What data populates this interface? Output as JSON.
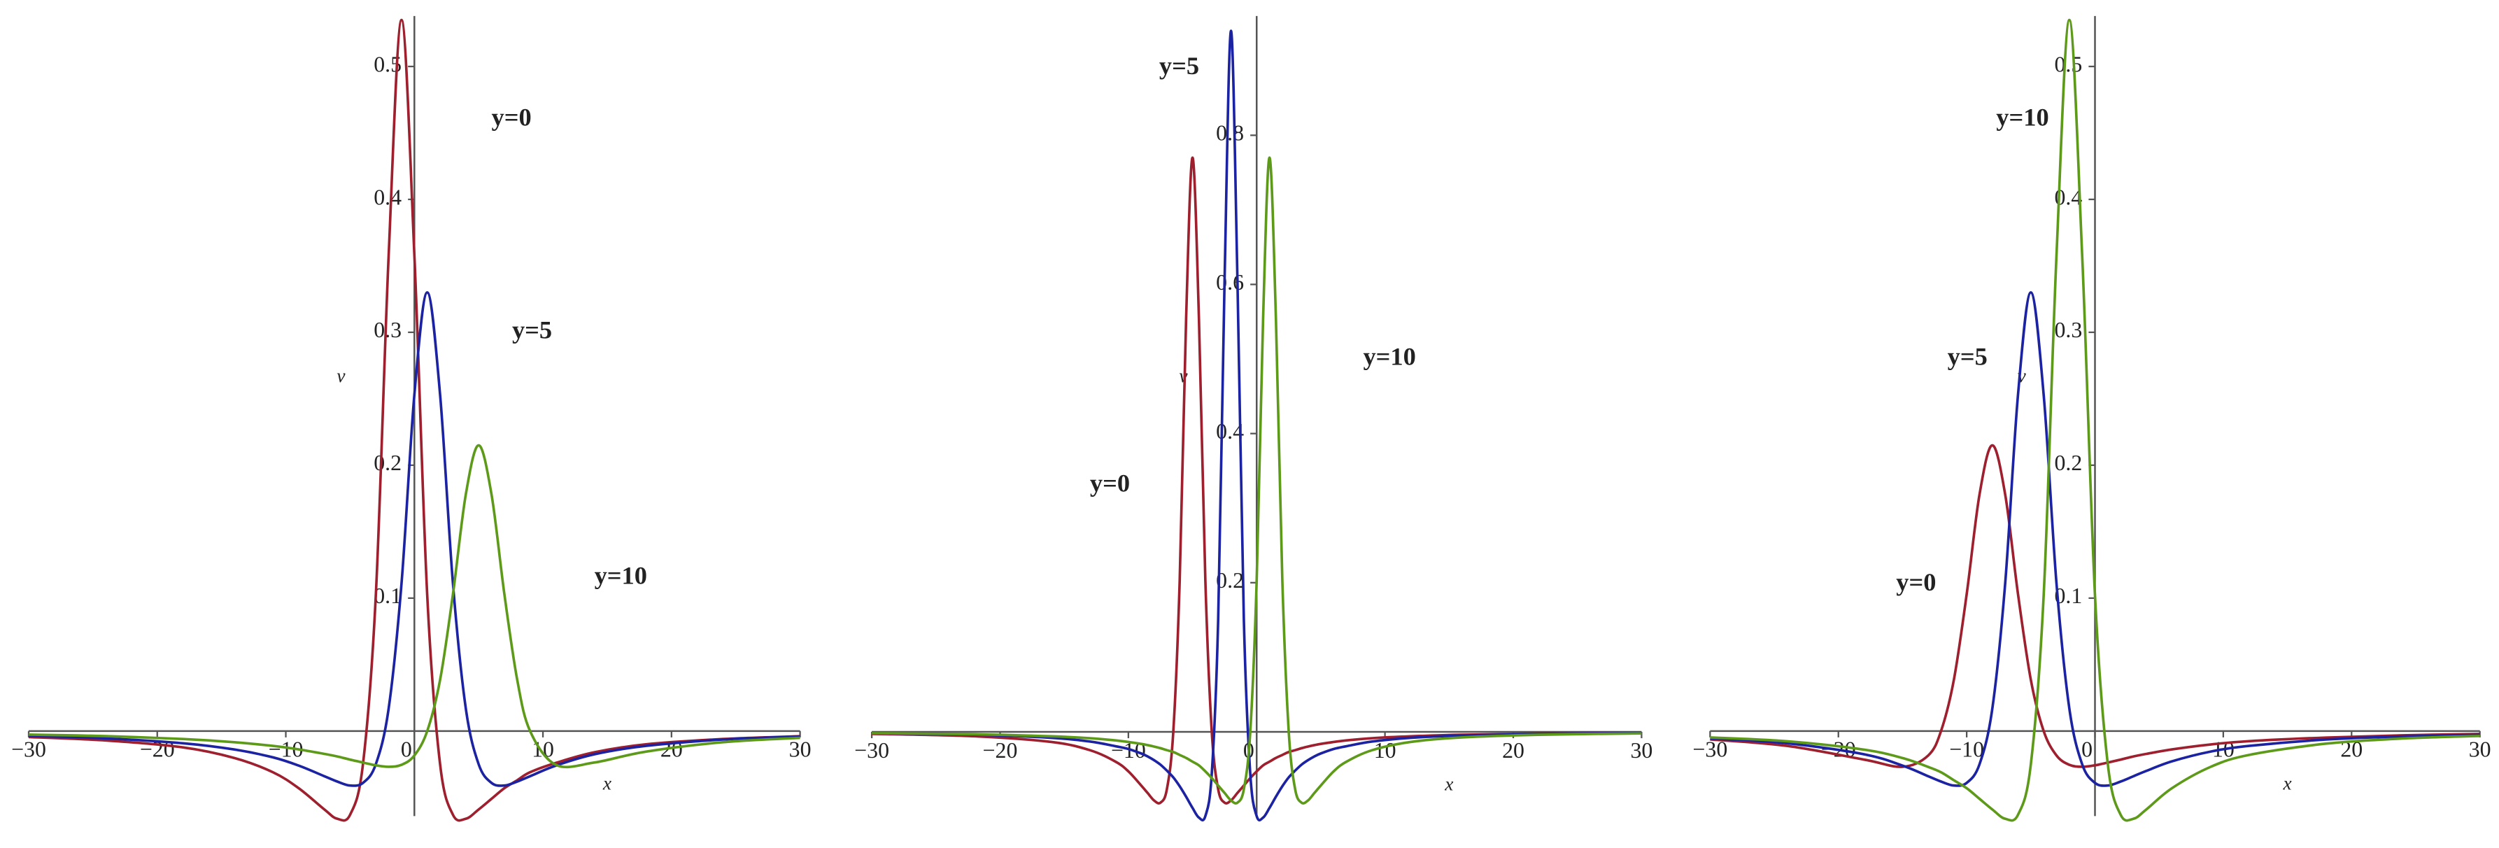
{
  "chart_data": [
    {
      "type": "line",
      "xlabel": "x",
      "ylabel": "v",
      "x": [
        -30,
        -24,
        -18,
        -14,
        -11,
        -9,
        -7,
        -6,
        -5,
        -4,
        -3,
        -2,
        -1,
        0,
        1,
        2,
        3,
        4,
        5,
        6,
        7,
        8,
        9,
        11,
        14,
        18,
        24,
        30
      ],
      "series": [
        {
          "name": "y=0",
          "color": "#9e1f2e",
          "values": [
            -0.0045,
            -0.0071,
            -0.0123,
            -0.0203,
            -0.031,
            -0.043,
            -0.059,
            -0.066,
            -0.063,
            -0.025,
            0.102,
            0.358,
            0.535,
            0.358,
            0.102,
            -0.025,
            -0.063,
            -0.066,
            -0.059,
            -0.051,
            -0.043,
            -0.037,
            -0.031,
            -0.024,
            -0.016,
            -0.01,
            -0.006,
            -0.0039
          ]
        },
        {
          "name": "y=5",
          "color": "#1c23a3",
          "values": [
            -0.0036,
            -0.0055,
            -0.0092,
            -0.0139,
            -0.0198,
            -0.026,
            -0.034,
            -0.038,
            -0.041,
            -0.039,
            -0.025,
            0.017,
            0.111,
            0.253,
            0.33,
            0.253,
            0.111,
            0.017,
            -0.025,
            -0.039,
            -0.041,
            -0.038,
            -0.034,
            -0.026,
            -0.0175,
            -0.0112,
            -0.0064,
            -0.0041
          ]
        },
        {
          "name": "y=10",
          "color": "#5e9a1a",
          "values": [
            -0.0027,
            -0.0038,
            -0.006,
            -0.0084,
            -0.0112,
            -0.0138,
            -0.0172,
            -0.0191,
            -0.0215,
            -0.0237,
            -0.0258,
            -0.0269,
            -0.0254,
            -0.0184,
            0,
            0.0385,
            0.103,
            0.178,
            0.215,
            0.178,
            0.103,
            0.0385,
            0,
            -0.0254,
            -0.0237,
            -0.0155,
            -0.0084,
            -0.0051
          ]
        }
      ],
      "xlim": [
        -30,
        30
      ],
      "ylim": [
        -0.064,
        0.538
      ],
      "xticks": [
        {
          "value": -30,
          "label": "−30"
        },
        {
          "value": -20,
          "label": "−20"
        },
        {
          "value": -10,
          "label": "−10"
        },
        0,
        10,
        20,
        30
      ],
      "yticks": [
        0.1,
        0.2,
        0.3,
        0.4,
        0.5
      ]
    },
    {
      "type": "line",
      "xlabel": "x",
      "ylabel": "v",
      "x": [
        -30,
        -22,
        -16,
        -13,
        -11,
        -10,
        -9,
        -8.5,
        -8,
        -7.5,
        -7,
        -6.5,
        -6,
        -5.5,
        -5,
        -4.5,
        -4,
        -3.5,
        -3,
        -2.5,
        -2,
        -1.5,
        -1,
        -0.5,
        0,
        0.5,
        1,
        1.5,
        2,
        2.5,
        3,
        3.5,
        4,
        4.5,
        5,
        6,
        7,
        9,
        12,
        16,
        22,
        30
      ],
      "series": [
        {
          "name": "y=0",
          "color": "#9e1f2e",
          "values": [
            -0.0028,
            -0.006,
            -0.0136,
            -0.0246,
            -0.04,
            -0.053,
            -0.072,
            -0.082,
            -0.092,
            -0.095,
            -0.077,
            0,
            0.203,
            0.554,
            0.77,
            0.554,
            0.203,
            0,
            -0.077,
            -0.095,
            -0.092,
            -0.082,
            -0.072,
            -0.062,
            -0.053,
            -0.045,
            -0.04,
            -0.035,
            -0.031,
            -0.027,
            -0.0246,
            -0.0219,
            -0.0197,
            -0.0178,
            -0.0162,
            -0.0136,
            -0.0115,
            -0.0085,
            -0.006,
            -0.0039,
            -0.0024,
            -0.0014
          ]
        },
        {
          "name": "y=5",
          "color": "#1c23a3",
          "values": [
            -0.002,
            -0.0039,
            -0.008,
            -0.013,
            -0.0193,
            -0.023,
            -0.029,
            -0.033,
            -0.038,
            -0.044,
            -0.052,
            -0.061,
            -0.073,
            -0.087,
            -0.102,
            -0.115,
            -0.113,
            -0.056,
            0.151,
            0.607,
            0.94,
            0.607,
            0.151,
            -0.056,
            -0.113,
            -0.115,
            -0.102,
            -0.087,
            -0.073,
            -0.061,
            -0.052,
            -0.044,
            -0.038,
            -0.033,
            -0.029,
            -0.023,
            -0.0193,
            -0.013,
            -0.008,
            -0.0049,
            -0.0027,
            -0.0016
          ]
        },
        {
          "name": "y=10",
          "color": "#5e9a1a",
          "values": [
            -0.0018,
            -0.0033,
            -0.006,
            -0.0085,
            -0.0115,
            -0.0136,
            -0.0162,
            -0.0178,
            -0.0197,
            -0.0219,
            -0.0246,
            -0.027,
            -0.031,
            -0.035,
            -0.04,
            -0.045,
            -0.053,
            -0.062,
            -0.072,
            -0.082,
            -0.092,
            -0.095,
            -0.077,
            0,
            0.203,
            0.554,
            0.77,
            0.554,
            0.203,
            0,
            -0.077,
            -0.095,
            -0.092,
            -0.082,
            -0.072,
            -0.053,
            -0.04,
            -0.0246,
            -0.0136,
            -0.0075,
            -0.0039,
            -0.0021
          ]
        }
      ],
      "xlim": [
        -30,
        30
      ],
      "ylim": [
        -0.113,
        0.96
      ],
      "xticks": [
        {
          "value": -30,
          "label": "−30"
        },
        {
          "value": -20,
          "label": "−20"
        },
        {
          "value": -10,
          "label": "−10"
        },
        0,
        10,
        20,
        30
      ],
      "yticks": [
        0.2,
        0.4,
        0.6,
        0.8
      ]
    },
    {
      "type": "line",
      "xlabel": "x",
      "ylabel": "v",
      "x": [
        -30,
        -24,
        -18,
        -15,
        -13,
        -12,
        -11,
        -10,
        -9,
        -8,
        -7,
        -6,
        -5,
        -4,
        -3,
        -2,
        -1,
        0,
        1,
        2,
        3,
        4,
        6,
        9,
        12,
        18,
        24,
        30
      ],
      "series": [
        {
          "name": "y=0",
          "color": "#9e1f2e",
          "values": [
            -0.0063,
            -0.0112,
            -0.0215,
            -0.0269,
            -0.0184,
            0,
            0.0385,
            0.103,
            0.178,
            0.215,
            0.178,
            0.103,
            0.0385,
            0,
            -0.0184,
            -0.0254,
            -0.0269,
            -0.0258,
            -0.0237,
            -0.0215,
            -0.0191,
            -0.0172,
            -0.0138,
            -0.0101,
            -0.0076,
            -0.0049,
            -0.0032,
            -0.0022
          ]
        },
        {
          "name": "y=5",
          "color": "#1c23a3",
          "values": [
            -0.0055,
            -0.0092,
            -0.0175,
            -0.026,
            -0.034,
            -0.038,
            -0.041,
            -0.039,
            -0.025,
            0.017,
            0.111,
            0.253,
            0.33,
            0.253,
            0.111,
            0.017,
            -0.025,
            -0.039,
            -0.041,
            -0.038,
            -0.034,
            -0.03,
            -0.0228,
            -0.0155,
            -0.0112,
            -0.0064,
            -0.0041,
            -0.0029
          ]
        },
        {
          "name": "y=10",
          "color": "#5e9a1a",
          "values": [
            -0.0048,
            -0.0077,
            -0.014,
            -0.0203,
            -0.027,
            -0.031,
            -0.037,
            -0.043,
            -0.051,
            -0.059,
            -0.066,
            -0.063,
            -0.025,
            0.102,
            0.358,
            0.535,
            0.358,
            0.102,
            -0.025,
            -0.063,
            -0.066,
            -0.059,
            -0.043,
            -0.027,
            -0.018,
            -0.0095,
            -0.0056,
            -0.0037
          ]
        }
      ],
      "xlim": [
        -30,
        30
      ],
      "ylim": [
        -0.064,
        0.538
      ],
      "xticks": [
        {
          "value": -30,
          "label": "−30"
        },
        {
          "value": -20,
          "label": "−20"
        },
        {
          "value": -10,
          "label": "−10"
        },
        0,
        10,
        20,
        30
      ],
      "yticks": [
        0.1,
        0.2,
        0.3,
        0.4,
        0.5
      ]
    }
  ]
}
